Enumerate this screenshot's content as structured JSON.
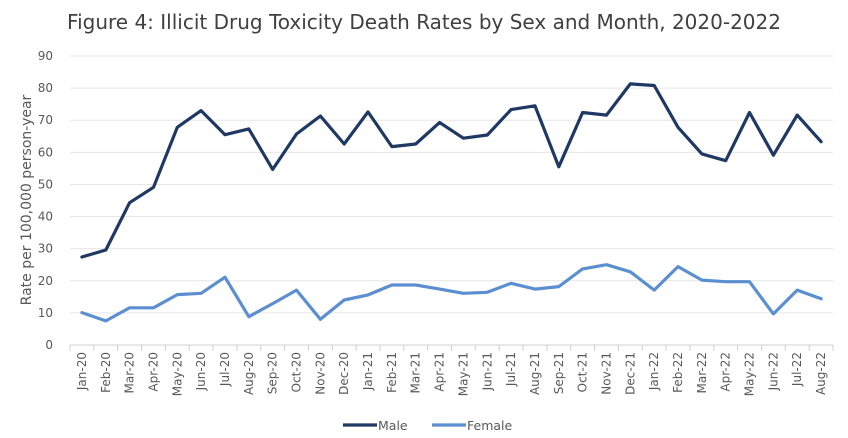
{
  "chart_data": {
    "type": "line",
    "title": "Figure 4: Illicit Drug Toxicity Death Rates by Sex and Month, 2020-2022",
    "xlabel": "",
    "ylabel": "Rate per 100,000 person-year",
    "ylim": [
      0,
      90
    ],
    "yticks": [
      0,
      10,
      20,
      30,
      40,
      50,
      60,
      70,
      80,
      90
    ],
    "grid": true,
    "legend_position": "bottom-center",
    "categories": [
      "Jan-20",
      "Feb-20",
      "Mar-20",
      "Apr-20",
      "May-20",
      "Jun-20",
      "Jul-20",
      "Aug-20",
      "Sep-20",
      "Oct-20",
      "Nov-20",
      "Dec-20",
      "Jan-21",
      "Feb-21",
      "Mar-21",
      "Apr-21",
      "May-21",
      "Jun-21",
      "Jul-21",
      "Aug-21",
      "Sep-21",
      "Oct-21",
      "Nov-21",
      "Dec-21",
      "Jan-22",
      "Feb-22",
      "Mar-22",
      "Apr-22",
      "May-22",
      "Jun-22",
      "Jul-22",
      "Aug-22"
    ],
    "series": [
      {
        "name": "Male",
        "color": "#1F3864",
        "values": [
          27.4,
          29.6,
          44.3,
          49.1,
          67.8,
          73.0,
          65.5,
          67.3,
          54.7,
          65.7,
          71.3,
          62.6,
          72.6,
          61.8,
          62.6,
          69.3,
          64.4,
          65.4,
          73.3,
          74.5,
          55.5,
          72.4,
          71.6,
          81.3,
          80.8,
          67.8,
          59.5,
          57.4,
          72.4,
          59.1,
          71.6,
          63.3
        ]
      },
      {
        "name": "Female",
        "color": "#5B8FD0",
        "values": [
          10.1,
          7.5,
          11.6,
          11.6,
          15.7,
          16.1,
          21.1,
          8.8,
          12.9,
          17.1,
          8.0,
          14.0,
          15.6,
          18.7,
          18.7,
          17.4,
          16.1,
          16.4,
          19.2,
          17.4,
          18.2,
          23.7,
          25.0,
          22.8,
          17.1,
          24.4,
          20.2,
          19.7,
          19.7,
          9.7,
          17.1,
          14.4
        ]
      }
    ]
  }
}
